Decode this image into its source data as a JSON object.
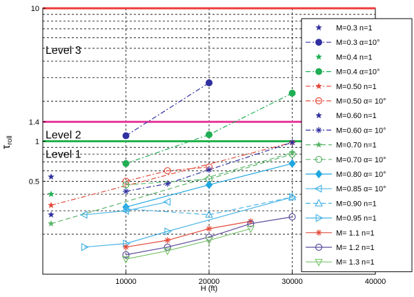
{
  "chart_data": {
    "type": "line",
    "title": "",
    "xlabel": "H (ft)",
    "ylabel_main": "τ",
    "ylabel_sub": "roll",
    "x_scale": "linear",
    "y_scale": "log",
    "xlim": [
      0,
      40000
    ],
    "ylim": [
      0.1,
      10
    ],
    "grid": true,
    "x_ticks": [
      10000,
      20000,
      30000,
      40000
    ],
    "x_tick_labels": [
      "10000",
      "20000",
      "30000",
      "40000"
    ],
    "y_ticks": [
      0.5,
      1,
      1.4,
      10
    ],
    "y_tick_labels": [
      "0.5",
      "1",
      "1.4",
      "10"
    ],
    "y_grid_values": [
      0.2,
      0.3,
      0.4,
      0.5,
      0.6,
      0.7,
      0.8,
      0.9,
      1,
      2,
      3,
      4,
      5,
      6,
      7,
      8,
      9,
      10
    ],
    "legend_position": "right",
    "level_lines": [
      {
        "label": "Level 1",
        "y": 1.0,
        "color": "#22b24c"
      },
      {
        "label": "Level 2",
        "y": 1.4,
        "color": "#e8389a"
      },
      {
        "label": "Level 3",
        "y": 10.0,
        "color": "#ee3b3b"
      }
    ],
    "series": [
      {
        "name": "M=0.3 n=1",
        "color": "#3030a0",
        "marker": "star",
        "line": "none",
        "x": [
          1000
        ],
        "y": [
          0.54
        ]
      },
      {
        "name": "M=0.3 α=10°",
        "color": "#3030a0",
        "marker": "dot",
        "line": "dashdot",
        "x": [
          10000,
          20000
        ],
        "y": [
          1.1,
          2.75
        ]
      },
      {
        "name": "M=0.4 n=1",
        "color": "#1fae54",
        "marker": "star",
        "line": "none",
        "x": [
          1000
        ],
        "y": [
          0.4
        ]
      },
      {
        "name": "M=0.4 α=10°",
        "color": "#1fae54",
        "marker": "dot",
        "line": "dashdot",
        "x": [
          10000,
          20000,
          30000
        ],
        "y": [
          0.68,
          1.12,
          2.3
        ]
      },
      {
        "name": "M=0.50 n=1",
        "color": "#e24a3a",
        "marker": "star",
        "line": "dashdot",
        "x": [
          1000,
          30000
        ],
        "y": [
          0.33,
          0.98
        ]
      },
      {
        "name": "M=0.50 α= 10°",
        "color": "#e24a3a",
        "marker": "circle",
        "line": "dashdot",
        "x": [
          10000,
          15000,
          20000
        ],
        "y": [
          0.5,
          0.6,
          0.64
        ]
      },
      {
        "name": "M=0.60 n=1",
        "color": "#3030a0",
        "marker": "star",
        "line": "none",
        "x": [
          1000
        ],
        "y": [
          0.28
        ]
      },
      {
        "name": "M=0.60 α= 10°",
        "color": "#3030a0",
        "marker": "plus",
        "line": "dashdot",
        "x": [
          10000,
          15000,
          20000,
          30000
        ],
        "y": [
          0.42,
          0.48,
          0.61,
          0.98
        ]
      },
      {
        "name": "M=0.70 n=1",
        "color": "#5bb56a",
        "marker": "star",
        "line": "dashed",
        "x": [
          1000,
          30000
        ],
        "y": [
          0.24,
          0.82
        ]
      },
      {
        "name": "M=0.70 α= 10°",
        "color": "#5bb56a",
        "marker": "circle",
        "line": "dashed",
        "x": [
          10000,
          20000,
          30000
        ],
        "y": [
          0.47,
          0.52,
          0.8
        ]
      },
      {
        "name": "M=0.80 α= 10°",
        "color": "#1fa7e0",
        "marker": "diamond",
        "line": "solid",
        "x": [
          10000,
          20000,
          30000
        ],
        "y": [
          0.32,
          0.47,
          0.68
        ]
      },
      {
        "name": "M=0.85 α= 10°",
        "color": "#49b4e6",
        "marker": "tri-left",
        "line": "solid",
        "x": [
          5000,
          10000,
          15000
        ],
        "y": [
          0.28,
          0.3,
          0.35
        ]
      },
      {
        "name": "M=0.90 n=1",
        "color": "#49b4e6",
        "marker": "tri-up",
        "line": "dashed",
        "x": [
          10000,
          20000,
          30000
        ],
        "y": [
          0.31,
          0.28,
          0.38
        ]
      },
      {
        "name": "M=0.95 n=1",
        "color": "#49b4e6",
        "marker": "tri-right",
        "line": "solid",
        "x": [
          5000,
          10000,
          15000,
          30000
        ],
        "y": [
          0.16,
          0.17,
          0.21,
          0.38
        ]
      },
      {
        "name": "M= 1.1 n=1",
        "color": "#e24a3a",
        "marker": "plus",
        "line": "solid",
        "x": [
          10000,
          15000,
          20000,
          25000
        ],
        "y": [
          0.16,
          0.18,
          0.22,
          0.25
        ]
      },
      {
        "name": "M= 1.2 n=1",
        "color": "#5a4a9a",
        "marker": "circle",
        "line": "solid",
        "x": [
          10000,
          15000,
          20000,
          25000,
          30000
        ],
        "y": [
          0.14,
          0.16,
          0.19,
          0.24,
          0.27
        ]
      },
      {
        "name": "M= 1.3 n=1",
        "color": "#7cc46f",
        "marker": "tri-down",
        "line": "solid",
        "x": [
          10000,
          15000,
          20000,
          25000
        ],
        "y": [
          0.13,
          0.15,
          0.18,
          0.22
        ]
      }
    ]
  }
}
